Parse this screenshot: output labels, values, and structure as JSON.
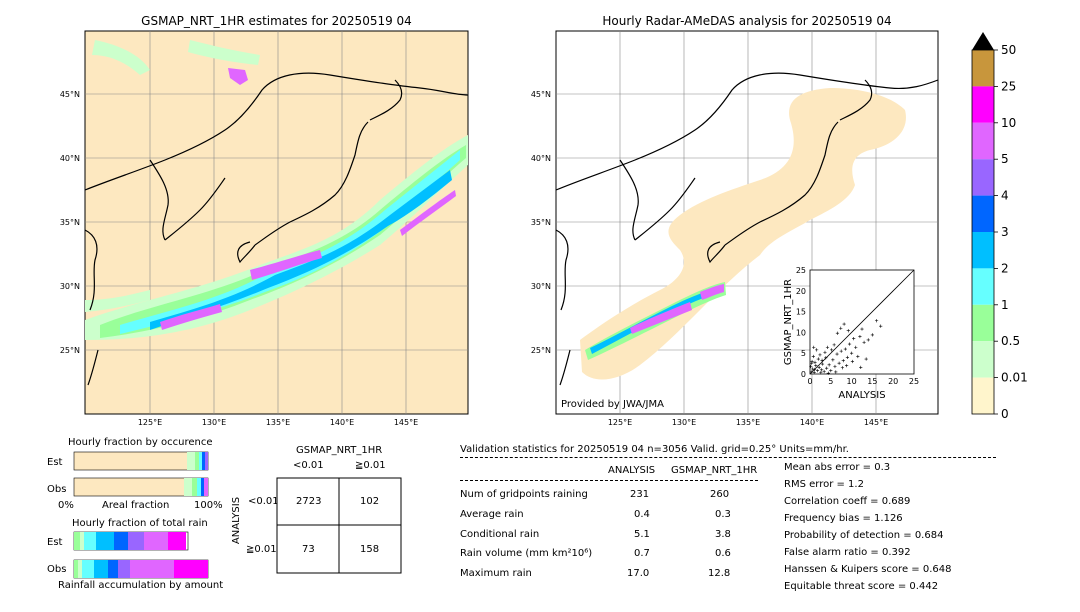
{
  "left_map": {
    "title": "GSMAP_NRT_1HR estimates for 20250519 04",
    "lat_labels": [
      "45°N",
      "40°N",
      "35°N",
      "30°N",
      "25°N"
    ],
    "lon_labels": [
      "125°E",
      "130°E",
      "135°E",
      "140°E",
      "145°E"
    ]
  },
  "right_map": {
    "title": "Hourly Radar-AMeDAS analysis for 20250519 04",
    "lat_labels": [
      "45°N",
      "40°N",
      "35°N",
      "30°N",
      "25°N"
    ],
    "lon_labels": [
      "125°E",
      "130°E",
      "135°E",
      "140°E",
      "145°E"
    ],
    "credit": "Provided by JWA/JMA"
  },
  "colorbar": {
    "levels": [
      "50",
      "25",
      "10",
      "5",
      "4",
      "3",
      "2",
      "1",
      "0.5",
      "0.01",
      "0"
    ],
    "colors": [
      "#c8963c",
      "#ff00ff",
      "#e066ff",
      "#9966ff",
      "#0066ff",
      "#00bfff",
      "#66ffff",
      "#99ff99",
      "#ccffcc",
      "#fff5cc"
    ],
    "extend_color": "#000000"
  },
  "occurrence": {
    "title": "Hourly fraction by occurence",
    "row_labels": [
      "Est",
      "Obs"
    ],
    "axis_left": "0%",
    "axis_mid": "Areal fraction",
    "axis_right": "100%"
  },
  "total_rain": {
    "title": "Hourly fraction of total rain",
    "row_labels": [
      "Est",
      "Obs"
    ],
    "axis_label": "Rainfall accumulation by amount"
  },
  "contingency": {
    "title": "GSMAP_NRT_1HR",
    "col_labels": [
      "<0.01",
      "≧0.01"
    ],
    "row_axis": "ANALYSIS",
    "row_labels": [
      "<0.01",
      "≧0.01"
    ],
    "cells": [
      [
        "2723",
        "102"
      ],
      [
        "73",
        "158"
      ]
    ]
  },
  "validation": {
    "header": "Validation statistics for 20250519 04  n=3056 Valid. grid=0.25°  Units=mm/hr.",
    "col_analysis": "ANALYSIS",
    "col_gsmap": "GSMAP_NRT_1HR",
    "rows": [
      {
        "label": "Num of gridpoints raining",
        "analysis": "231",
        "gsmap": "260"
      },
      {
        "label": "Average rain",
        "analysis": "0.4",
        "gsmap": "0.3"
      },
      {
        "label": "Conditional rain",
        "analysis": "5.1",
        "gsmap": "3.8"
      },
      {
        "label": "Rain volume (mm km²10⁶)",
        "analysis": "0.7",
        "gsmap": "0.6"
      },
      {
        "label": "Maximum rain",
        "analysis": "17.0",
        "gsmap": "12.8"
      }
    ],
    "scores": [
      "Mean abs error =    0.3",
      "RMS error =    1.2",
      "Correlation coeff =  0.689",
      "Frequency bias =  1.126",
      "Probability of detection =  0.684",
      "False alarm ratio =  0.392",
      "Hanssen & Kuipers score =  0.648",
      "Equitable threat score =  0.442"
    ]
  },
  "chart_data": {
    "type": "scatter",
    "xlabel": "ANALYSIS",
    "ylabel": "GSMAP_NRT_1HR",
    "xlim": [
      0,
      25
    ],
    "ylim": [
      0,
      25
    ],
    "xticks": [
      "0",
      "5",
      "10",
      "15",
      "20",
      "25"
    ],
    "yticks": [
      "0",
      "5",
      "10",
      "15",
      "20",
      "25"
    ],
    "points": [
      [
        0.3,
        0.5
      ],
      [
        0.6,
        1.2
      ],
      [
        1.0,
        0.4
      ],
      [
        1.4,
        2.0
      ],
      [
        1.8,
        0.8
      ],
      [
        2.2,
        1.6
      ],
      [
        2.6,
        0.3
      ],
      [
        3.0,
        2.4
      ],
      [
        0.5,
        3.0
      ],
      [
        0.8,
        4.2
      ],
      [
        1.2,
        2.8
      ],
      [
        2.0,
        3.6
      ],
      [
        2.8,
        1.0
      ],
      [
        3.4,
        0.6
      ],
      [
        4.0,
        1.4
      ],
      [
        4.6,
        2.2
      ],
      [
        5.0,
        0.8
      ],
      [
        5.5,
        3.4
      ],
      [
        6.0,
        1.8
      ],
      [
        6.5,
        4.8
      ],
      [
        7.0,
        2.6
      ],
      [
        7.5,
        5.5
      ],
      [
        8.0,
        3.2
      ],
      [
        8.5,
        6.0
      ],
      [
        9.0,
        4.0
      ],
      [
        9.5,
        7.2
      ],
      [
        10.0,
        5.0
      ],
      [
        10.5,
        8.5
      ],
      [
        11.0,
        6.4
      ],
      [
        12.0,
        9.0
      ],
      [
        12.5,
        10.8
      ],
      [
        13.0,
        7.6
      ],
      [
        14.0,
        8.2
      ],
      [
        15.0,
        9.4
      ],
      [
        16.0,
        12.8
      ],
      [
        17.0,
        11.5
      ],
      [
        4.2,
        6.4
      ],
      [
        5.8,
        7.0
      ],
      [
        6.6,
        9.8
      ],
      [
        7.4,
        11.0
      ],
      [
        8.2,
        12.0
      ],
      [
        9.2,
        10.4
      ],
      [
        3.6,
        5.2
      ],
      [
        2.4,
        4.6
      ],
      [
        1.6,
        5.8
      ],
      [
        0.9,
        6.4
      ],
      [
        11.5,
        4.2
      ],
      [
        13.5,
        3.6
      ],
      [
        0.2,
        1.8
      ],
      [
        0.4,
        2.6
      ],
      [
        1.1,
        1.1
      ],
      [
        2.9,
        3.3
      ],
      [
        3.8,
        3.9
      ],
      [
        4.4,
        0.2
      ],
      [
        5.2,
        5.8
      ],
      [
        6.2,
        0.5
      ],
      [
        7.8,
        1.5
      ],
      [
        8.8,
        2.0
      ],
      [
        10.2,
        3.0
      ],
      [
        12.2,
        1.6
      ]
    ],
    "diagonal": [
      [
        0,
        0
      ],
      [
        25,
        25
      ]
    ]
  }
}
